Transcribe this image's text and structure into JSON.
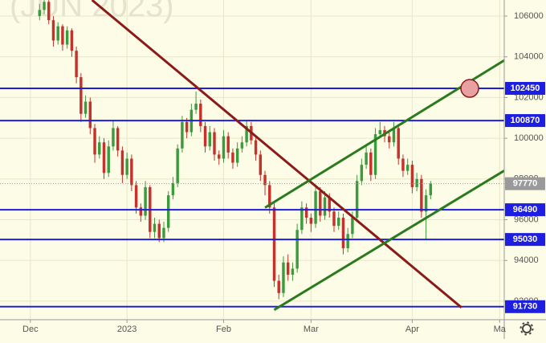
{
  "chart_data": {
    "type": "candlestick",
    "watermark": "(JUN 2023)",
    "background": "#fdfce6",
    "up_color": "#3d9a3d",
    "down_color": "#c4322b",
    "grid": true,
    "xlim": [
      -6.6,
      103
    ],
    "xticks": [
      {
        "value": 0,
        "label": "Dec"
      },
      {
        "value": 21,
        "label": "2023"
      },
      {
        "value": 42,
        "label": "Feb"
      },
      {
        "value": 61,
        "label": "Mar"
      },
      {
        "value": 83,
        "label": "Apr"
      },
      {
        "value": 102,
        "label": "Ma"
      }
    ],
    "ylim": [
      91090,
      106790
    ],
    "yticks": [
      92000,
      94000,
      96000,
      98000,
      100000,
      102000,
      104000,
      106000
    ],
    "x": [
      2,
      3,
      4,
      5,
      6,
      7,
      8,
      9,
      10,
      11,
      12,
      13,
      14,
      15,
      16,
      17,
      18,
      19,
      20,
      21,
      22,
      23,
      24,
      25,
      26,
      27,
      28,
      29,
      30,
      31,
      32,
      33,
      34,
      35,
      36,
      37,
      38,
      39,
      40,
      41,
      42,
      43,
      44,
      45,
      46,
      47,
      48,
      49,
      50,
      51,
      52,
      53,
      54,
      55,
      56,
      57,
      58,
      59,
      60,
      61,
      62,
      63,
      64,
      65,
      66,
      67,
      68,
      69,
      70,
      71,
      72,
      73,
      74,
      75,
      76,
      77,
      78,
      79,
      80,
      81,
      82,
      83,
      84,
      85,
      86,
      87
    ],
    "candles": [
      [
        106000,
        106600,
        105800,
        106300
      ],
      [
        106300,
        106900,
        106100,
        106700
      ],
      [
        106700,
        106800,
        105600,
        105800
      ],
      [
        105800,
        106000,
        104500,
        104800
      ],
      [
        104800,
        105700,
        104600,
        105500
      ],
      [
        105500,
        105600,
        104300,
        104600
      ],
      [
        104600,
        105500,
        104400,
        105300
      ],
      [
        105300,
        105400,
        104000,
        104300
      ],
      [
        104300,
        104500,
        102700,
        103000
      ],
      [
        103000,
        103200,
        100800,
        101200
      ],
      [
        101200,
        102100,
        101000,
        101800
      ],
      [
        101800,
        102000,
        100200,
        100500
      ],
      [
        100500,
        100700,
        98800,
        99200
      ],
      [
        99200,
        100100,
        99000,
        99800
      ],
      [
        99800,
        100000,
        98000,
        98300
      ],
      [
        98300,
        99900,
        98100,
        99600
      ],
      [
        99600,
        100900,
        99400,
        100500
      ],
      [
        100500,
        100600,
        99100,
        99400
      ],
      [
        99400,
        99600,
        97800,
        98200
      ],
      [
        98200,
        99300,
        98000,
        99000
      ],
      [
        99000,
        99200,
        97400,
        97700
      ],
      [
        97700,
        97900,
        96300,
        96600
      ],
      [
        96600,
        96800,
        95900,
        96200
      ],
      [
        96200,
        97900,
        96000,
        97600
      ],
      [
        97600,
        97700,
        95100,
        95400
      ],
      [
        95400,
        96100,
        95100,
        95800
      ],
      [
        95800,
        96000,
        94900,
        95100
      ],
      [
        95100,
        95900,
        94900,
        95600
      ],
      [
        95600,
        97400,
        95400,
        97200
      ],
      [
        97200,
        98100,
        97000,
        97800
      ],
      [
        97800,
        99700,
        97600,
        99500
      ],
      [
        99500,
        101100,
        99300,
        100800
      ],
      [
        100800,
        101000,
        100000,
        100300
      ],
      [
        100300,
        101700,
        100100,
        101400
      ],
      [
        101400,
        102300,
        101200,
        101700
      ],
      [
        101700,
        101900,
        100300,
        100600
      ],
      [
        100600,
        100800,
        99300,
        99600
      ],
      [
        99600,
        100600,
        99400,
        100300
      ],
      [
        100300,
        100500,
        98900,
        99200
      ],
      [
        99200,
        99400,
        98700,
        99000
      ],
      [
        99000,
        100400,
        98800,
        100100
      ],
      [
        100100,
        100300,
        99000,
        99300
      ],
      [
        99300,
        99500,
        98500,
        98800
      ],
      [
        98800,
        99800,
        98600,
        99500
      ],
      [
        99500,
        100100,
        99300,
        99800
      ],
      [
        99800,
        100900,
        99600,
        100600
      ],
      [
        100600,
        100800,
        99700,
        99900
      ],
      [
        99900,
        100100,
        98900,
        99200
      ],
      [
        99200,
        99400,
        97900,
        98200
      ],
      [
        98200,
        98400,
        97200,
        97700
      ],
      [
        97700,
        97900,
        96300,
        96600
      ],
      [
        96600,
        96800,
        92700,
        93000
      ],
      [
        93000,
        93300,
        92100,
        92400
      ],
      [
        92400,
        94200,
        92200,
        93900
      ],
      [
        93900,
        94300,
        93000,
        93300
      ],
      [
        93300,
        93900,
        93000,
        93600
      ],
      [
        93600,
        95800,
        93400,
        95500
      ],
      [
        95500,
        96900,
        95300,
        96600
      ],
      [
        96600,
        96800,
        95800,
        96100
      ],
      [
        96100,
        96300,
        95400,
        95800
      ],
      [
        95800,
        97700,
        95600,
        97400
      ],
      [
        97400,
        97600,
        95900,
        96200
      ],
      [
        96200,
        97400,
        96000,
        97100
      ],
      [
        97100,
        97300,
        96100,
        96400
      ],
      [
        96400,
        96600,
        95400,
        95700
      ],
      [
        95700,
        96400,
        95500,
        96100
      ],
      [
        96100,
        96300,
        94300,
        94600
      ],
      [
        94600,
        95600,
        94400,
        95300
      ],
      [
        95300,
        96400,
        95100,
        96100
      ],
      [
        96100,
        98200,
        95900,
        97900
      ],
      [
        97900,
        99000,
        97700,
        98700
      ],
      [
        98700,
        99600,
        98500,
        99300
      ],
      [
        99300,
        99500,
        97900,
        98200
      ],
      [
        98200,
        100500,
        98000,
        100200
      ],
      [
        100200,
        100800,
        100000,
        100400
      ],
      [
        100400,
        100600,
        99800,
        100100
      ],
      [
        100100,
        100300,
        99500,
        99800
      ],
      [
        99800,
        100800,
        99600,
        100500
      ],
      [
        100500,
        100700,
        98700,
        99000
      ],
      [
        99000,
        99200,
        98100,
        98400
      ],
      [
        98400,
        99000,
        98200,
        98700
      ],
      [
        98700,
        98900,
        97300,
        97600
      ],
      [
        97600,
        98300,
        97400,
        98000
      ],
      [
        98000,
        98200,
        96100,
        96400
      ],
      [
        96400,
        97500,
        95000,
        97200
      ],
      [
        97200,
        97900,
        97000,
        97770
      ]
    ],
    "levels": [
      102450,
      100870,
      96490,
      95030,
      91730
    ],
    "level_color": "#1e1ee0",
    "last_price": 97770,
    "last_price_color": "#9a9a9a",
    "lines": [
      {
        "color": "#8b1a1a",
        "x": [
          13.4,
          93.7
        ],
        "y": [
          106790,
          91690
        ]
      },
      {
        "color": "#2a7a1e",
        "x": [
          51,
          103
        ],
        "y": [
          96592,
          103826
        ]
      },
      {
        "color": "#2a7a1e",
        "x": [
          53,
          103
        ],
        "y": [
          91573,
          98411
        ]
      }
    ],
    "marker": {
      "x": 95.5,
      "y": 102450,
      "color": "#e8a0a0"
    }
  }
}
